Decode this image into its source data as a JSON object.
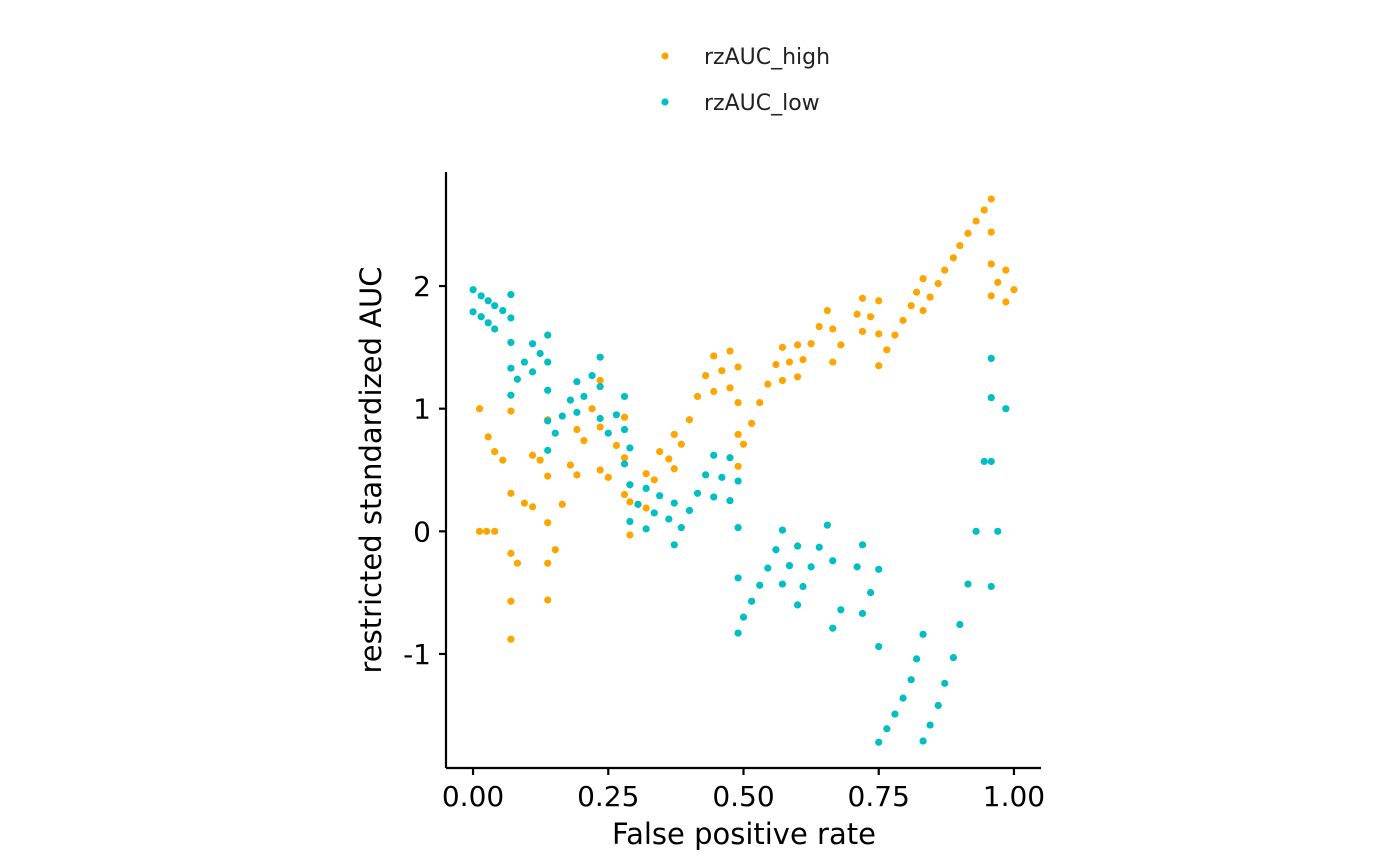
{
  "chart_data": {
    "type": "scatter",
    "title": "",
    "xlabel": "False positive rate",
    "ylabel": "restricted standardized AUC",
    "xlim": [
      -0.05,
      1.05
    ],
    "ylim": [
      -1.93,
      2.93
    ],
    "x_ticks": [
      {
        "value": 0.0,
        "label": "0.00"
      },
      {
        "value": 0.25,
        "label": "0.25"
      },
      {
        "value": 0.5,
        "label": "0.50"
      },
      {
        "value": 0.75,
        "label": "0.75"
      },
      {
        "value": 1.0,
        "label": "1.00"
      }
    ],
    "y_ticks": [
      {
        "value": -1,
        "label": "-1"
      },
      {
        "value": 0,
        "label": "0"
      },
      {
        "value": 1,
        "label": "1"
      },
      {
        "value": 2,
        "label": "2"
      }
    ],
    "grid": false,
    "legend_position": "top",
    "series": [
      {
        "name": "rzAUC_high",
        "color": "#FFA500",
        "points": [
          [
            0.012,
            1.0
          ],
          [
            0.012,
            0.0
          ],
          [
            0.025,
            0.0
          ],
          [
            0.04,
            0.0
          ],
          [
            0.028,
            0.77
          ],
          [
            0.04,
            0.65
          ],
          [
            0.055,
            0.58
          ],
          [
            0.07,
            0.98
          ],
          [
            0.07,
            0.31
          ],
          [
            0.07,
            -0.18
          ],
          [
            0.07,
            -0.57
          ],
          [
            0.07,
            -0.88
          ],
          [
            0.082,
            -0.26
          ],
          [
            0.095,
            0.23
          ],
          [
            0.11,
            0.2
          ],
          [
            0.11,
            0.62
          ],
          [
            0.124,
            0.58
          ],
          [
            0.138,
            0.91
          ],
          [
            0.138,
            0.45
          ],
          [
            0.138,
            0.07
          ],
          [
            0.138,
            -0.26
          ],
          [
            0.138,
            -0.56
          ],
          [
            0.152,
            -0.15
          ],
          [
            0.165,
            0.22
          ],
          [
            0.18,
            0.54
          ],
          [
            0.192,
            0.46
          ],
          [
            0.192,
            0.83
          ],
          [
            0.205,
            0.74
          ],
          [
            0.22,
            1.0
          ],
          [
            0.235,
            1.23
          ],
          [
            0.235,
            0.85
          ],
          [
            0.235,
            0.5
          ],
          [
            0.25,
            0.44
          ],
          [
            0.265,
            0.7
          ],
          [
            0.28,
            0.93
          ],
          [
            0.28,
            0.6
          ],
          [
            0.28,
            0.3
          ],
          [
            0.29,
            0.24
          ],
          [
            0.29,
            -0.03
          ],
          [
            0.305,
            0.22
          ],
          [
            0.32,
            0.47
          ],
          [
            0.32,
            0.19
          ],
          [
            0.335,
            0.42
          ],
          [
            0.345,
            0.65
          ],
          [
            0.362,
            0.59
          ],
          [
            0.372,
            0.79
          ],
          [
            0.372,
            0.51
          ],
          [
            0.385,
            0.71
          ],
          [
            0.4,
            0.91
          ],
          [
            0.415,
            1.1
          ],
          [
            0.43,
            1.27
          ],
          [
            0.445,
            1.43
          ],
          [
            0.445,
            1.14
          ],
          [
            0.46,
            1.31
          ],
          [
            0.475,
            1.47
          ],
          [
            0.475,
            1.17
          ],
          [
            0.49,
            1.34
          ],
          [
            0.49,
            1.05
          ],
          [
            0.49,
            0.79
          ],
          [
            0.49,
            0.53
          ],
          [
            0.5,
            0.71
          ],
          [
            0.515,
            0.88
          ],
          [
            0.53,
            1.05
          ],
          [
            0.545,
            1.2
          ],
          [
            0.56,
            1.36
          ],
          [
            0.572,
            1.5
          ],
          [
            0.572,
            1.23
          ],
          [
            0.585,
            1.38
          ],
          [
            0.6,
            1.52
          ],
          [
            0.6,
            1.26
          ],
          [
            0.61,
            1.4
          ],
          [
            0.625,
            1.53
          ],
          [
            0.64,
            1.67
          ],
          [
            0.655,
            1.8
          ],
          [
            0.665,
            1.65
          ],
          [
            0.665,
            1.38
          ],
          [
            0.68,
            1.52
          ],
          [
            0.71,
            1.77
          ],
          [
            0.72,
            1.9
          ],
          [
            0.72,
            1.63
          ],
          [
            0.735,
            1.75
          ],
          [
            0.75,
            1.88
          ],
          [
            0.75,
            1.61
          ],
          [
            0.75,
            1.35
          ],
          [
            0.765,
            1.48
          ],
          [
            0.78,
            1.6
          ],
          [
            0.795,
            1.72
          ],
          [
            0.81,
            1.84
          ],
          [
            0.82,
            1.95
          ],
          [
            0.832,
            2.06
          ],
          [
            0.832,
            1.8
          ],
          [
            0.845,
            1.91
          ],
          [
            0.86,
            2.02
          ],
          [
            0.872,
            2.13
          ],
          [
            0.888,
            2.23
          ],
          [
            0.9,
            2.33
          ],
          [
            0.915,
            2.43
          ],
          [
            0.93,
            2.53
          ],
          [
            0.945,
            2.62
          ],
          [
            0.958,
            2.71
          ],
          [
            0.958,
            2.44
          ],
          [
            0.958,
            2.18
          ],
          [
            0.958,
            1.92
          ],
          [
            0.97,
            2.03
          ],
          [
            0.985,
            2.13
          ],
          [
            0.985,
            1.87
          ],
          [
            1.0,
            1.97
          ]
        ]
      },
      {
        "name": "rzAUC_low",
        "color": "#00BFC4",
        "points": [
          [
            0.0,
            1.97
          ],
          [
            0.0,
            1.79
          ],
          [
            0.015,
            1.92
          ],
          [
            0.015,
            1.75
          ],
          [
            0.028,
            1.88
          ],
          [
            0.028,
            1.7
          ],
          [
            0.04,
            1.84
          ],
          [
            0.04,
            1.65
          ],
          [
            0.055,
            1.8
          ],
          [
            0.07,
            1.93
          ],
          [
            0.07,
            1.74
          ],
          [
            0.07,
            1.54
          ],
          [
            0.07,
            1.33
          ],
          [
            0.07,
            1.11
          ],
          [
            0.082,
            1.24
          ],
          [
            0.095,
            1.38
          ],
          [
            0.11,
            1.53
          ],
          [
            0.11,
            1.3
          ],
          [
            0.124,
            1.45
          ],
          [
            0.138,
            1.6
          ],
          [
            0.138,
            1.38
          ],
          [
            0.138,
            1.15
          ],
          [
            0.138,
            0.9
          ],
          [
            0.138,
            0.66
          ],
          [
            0.152,
            0.8
          ],
          [
            0.165,
            0.94
          ],
          [
            0.18,
            1.07
          ],
          [
            0.192,
            1.22
          ],
          [
            0.192,
            0.97
          ],
          [
            0.205,
            1.1
          ],
          [
            0.22,
            1.27
          ],
          [
            0.235,
            1.42
          ],
          [
            0.235,
            1.18
          ],
          [
            0.235,
            0.92
          ],
          [
            0.25,
            0.8
          ],
          [
            0.265,
            0.95
          ],
          [
            0.28,
            1.1
          ],
          [
            0.28,
            0.83
          ],
          [
            0.28,
            0.55
          ],
          [
            0.29,
            0.68
          ],
          [
            0.29,
            0.38
          ],
          [
            0.29,
            0.08
          ],
          [
            0.305,
            0.22
          ],
          [
            0.32,
            0.35
          ],
          [
            0.32,
            0.02
          ],
          [
            0.335,
            0.15
          ],
          [
            0.345,
            0.29
          ],
          [
            0.362,
            0.1
          ],
          [
            0.372,
            0.23
          ],
          [
            0.372,
            -0.11
          ],
          [
            0.385,
            0.03
          ],
          [
            0.4,
            0.17
          ],
          [
            0.415,
            0.31
          ],
          [
            0.43,
            0.46
          ],
          [
            0.445,
            0.62
          ],
          [
            0.445,
            0.28
          ],
          [
            0.46,
            0.44
          ],
          [
            0.475,
            0.6
          ],
          [
            0.475,
            0.25
          ],
          [
            0.49,
            0.41
          ],
          [
            0.49,
            0.03
          ],
          [
            0.49,
            -0.38
          ],
          [
            0.49,
            -0.83
          ],
          [
            0.5,
            -0.7
          ],
          [
            0.515,
            -0.57
          ],
          [
            0.53,
            -0.44
          ],
          [
            0.545,
            -0.3
          ],
          [
            0.56,
            -0.15
          ],
          [
            0.572,
            0.01
          ],
          [
            0.572,
            -0.43
          ],
          [
            0.585,
            -0.28
          ],
          [
            0.6,
            -0.12
          ],
          [
            0.6,
            -0.6
          ],
          [
            0.61,
            -0.45
          ],
          [
            0.625,
            -0.29
          ],
          [
            0.64,
            -0.13
          ],
          [
            0.655,
            0.05
          ],
          [
            0.665,
            -0.24
          ],
          [
            0.665,
            -0.79
          ],
          [
            0.68,
            -0.64
          ],
          [
            0.71,
            -0.29
          ],
          [
            0.72,
            -0.11
          ],
          [
            0.72,
            -0.67
          ],
          [
            0.735,
            -0.5
          ],
          [
            0.75,
            -0.31
          ],
          [
            0.75,
            -0.94
          ],
          [
            0.75,
            -1.72
          ],
          [
            0.765,
            -1.61
          ],
          [
            0.78,
            -1.49
          ],
          [
            0.795,
            -1.36
          ],
          [
            0.81,
            -1.21
          ],
          [
            0.82,
            -1.04
          ],
          [
            0.832,
            -0.84
          ],
          [
            0.832,
            -1.71
          ],
          [
            0.845,
            -1.58
          ],
          [
            0.86,
            -1.42
          ],
          [
            0.872,
            -1.24
          ],
          [
            0.888,
            -1.03
          ],
          [
            0.9,
            -0.76
          ],
          [
            0.915,
            -0.43
          ],
          [
            0.93,
            0.0
          ],
          [
            0.945,
            0.57
          ],
          [
            0.958,
            1.41
          ],
          [
            0.958,
            1.09
          ],
          [
            0.958,
            0.57
          ],
          [
            0.958,
            -0.45
          ],
          [
            0.97,
            0.0
          ],
          [
            0.985,
            1.0
          ]
        ]
      }
    ]
  }
}
